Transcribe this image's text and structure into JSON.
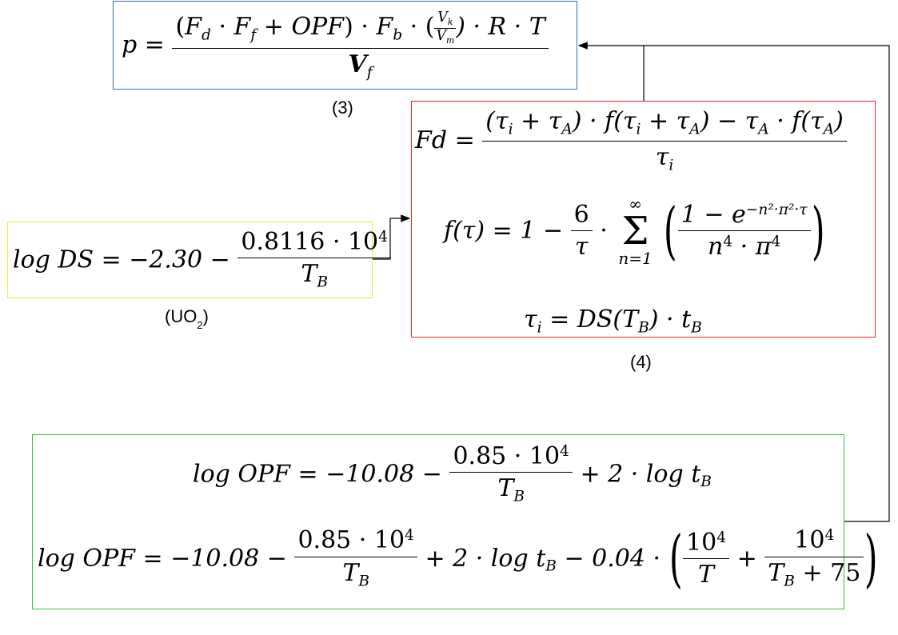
{
  "eq3": {
    "lhs": "p",
    "eq": "=",
    "num_open": "(",
    "Fd_F": "F",
    "Fd_sub": "d",
    "dot1": " · ",
    "Ff_F": "F",
    "Ff_sub": "f",
    "plus": " + ",
    "OPF": "OPF",
    "num_close": ")",
    "dot2": " · ",
    "Fb_F": "F",
    "Fb_sub": "b",
    "dot3": " · (",
    "Vk_V": "V",
    "Vk_sub": "k",
    "Vm_V": "V",
    "Vm_sub": "m",
    "rest": ") · R · T",
    "den_V": "V",
    "den_sub": "f",
    "caption": "(3)"
  },
  "eq4": {
    "fd_lhs": "Fd",
    "eq": "=",
    "fd_num": "(τ",
    "fd_num_i": "i",
    "fd_num_2": " + τ",
    "fd_num_A": "A",
    "fd_num_3": ") · f(τ",
    "fd_num_i2": "i",
    "fd_num_4": " + τ",
    "fd_num_A2": "A",
    "fd_num_5": ") − τ",
    "fd_num_A3": "A",
    "fd_num_6": " · f(τ",
    "fd_num_A4": "A",
    "fd_num_7": ")",
    "fd_den": "τ",
    "fd_den_i": "i",
    "f_lhs": "f(τ) = 1 −",
    "f_frac_num": "6",
    "f_frac_den": "τ",
    "f_dot": "·",
    "sum_top": "∞",
    "sum_sig": "Σ",
    "sum_bot": "n=1",
    "exp_num_1": "1 − e",
    "exp_num_sup": "−n²·π²·τ",
    "exp_den_1": "n",
    "exp_den_sup1": "4",
    "exp_den_2": " · π",
    "exp_den_sup2": "4",
    "tau_lhs": "τ",
    "tau_sub": "i",
    "tau_rhs": " = DS(T",
    "tau_rhs_sub": "B",
    "tau_rhs_2": ") · t",
    "tau_rhs_sub2": "B",
    "caption": "(4)"
  },
  "eqds": {
    "lhs": "log DS = −2.30 −",
    "num": "0.8116 · 10",
    "num_sup": "4",
    "den": "T",
    "den_sub": "B",
    "caption_open": "(UO",
    "caption_sub": "2",
    "caption_close": ")"
  },
  "eqopf": {
    "l1_lhs": "log OPF = −10.08 −",
    "l1_num": "0.85 · 10",
    "l1_num_sup": "4",
    "l1_den": "T",
    "l1_den_sub": "B",
    "l1_rest": "+ 2 · log t",
    "l1_rest_sub": "B",
    "l2_lhs": "log OPF = −10.08 −",
    "l2_num": "0.85 · 10",
    "l2_num_sup": "4",
    "l2_den": "T",
    "l2_den_sub": "B",
    "l2_mid": "+ 2 · log t",
    "l2_mid_sub": "B",
    "l2_mid_2": " − 0.04 ·",
    "l2_f1_num": "10",
    "l2_f1_num_sup": "4",
    "l2_f1_den": "T",
    "l2_plus": "+",
    "l2_f2_num": "10",
    "l2_f2_num_sup": "4",
    "l2_f2_den": "T",
    "l2_f2_den_sub": "B",
    "l2_f2_den_2": " + 75"
  },
  "colors": {
    "eq3_border": "#3c6e9c",
    "eq4_border": "#e3242b",
    "ds_border": "#f2e93c",
    "opf_border": "#3bbf3b"
  }
}
